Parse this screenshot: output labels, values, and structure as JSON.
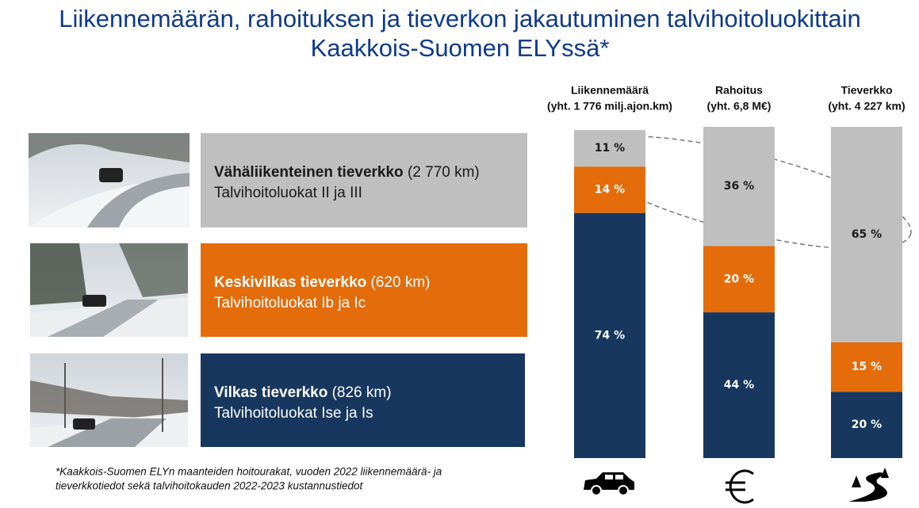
{
  "chart_data": {
    "type": "bar",
    "stacked": true,
    "title": [
      "Liikennemäärän, rahoituksen ja tieverkon jakautuminen talvihoitoluokittain",
      "Kaakkois-Suomen ELYssä*"
    ],
    "categories": [
      "Liikennemäärä",
      "Rahoitus",
      "Tieverkko"
    ],
    "category_notes": [
      "(yht. 1 776 milj.ajon.km)",
      "(yht. 6,8 M€)",
      "(yht. 4 227 km)"
    ],
    "ylim": [
      0,
      100
    ],
    "series": [
      {
        "name": "Vähäliikenteinen tieverkko",
        "extent": "(2 770 km)",
        "classes": "Talvihoitoluokat II ja III",
        "color": "#bfbfbf",
        "text_color": "#1a1a1a",
        "values": [
          11,
          36,
          65
        ],
        "value_labels": [
          "11 %",
          "36 %",
          "65 %"
        ]
      },
      {
        "name": "Keskivilkas tieverkko",
        "extent": "(620 km)",
        "classes": "Talvihoitoluokat Ib ja Ic",
        "color": "#e46c0a",
        "text_color": "#ffffff",
        "values": [
          14,
          20,
          15
        ],
        "value_labels": [
          "14 %",
          "20 %",
          "15 %"
        ]
      },
      {
        "name": "Vilkas tieverkko",
        "extent": "(826 km)",
        "classes": "Talvihoitoluokat Ise ja Is",
        "color": "#17375e",
        "text_color": "#ffffff",
        "values": [
          74,
          44,
          20
        ],
        "value_labels": [
          "74 %",
          "44 %",
          "20 %"
        ]
      }
    ],
    "footnote": [
      "*Kaakkois-Suomen ELYn maanteiden hoitourakat, vuoden 2022 liikennemäärä- ja",
      "tieverkkotiedot sekä talvihoitokauden 2022-2023 kustannustiedot"
    ]
  }
}
